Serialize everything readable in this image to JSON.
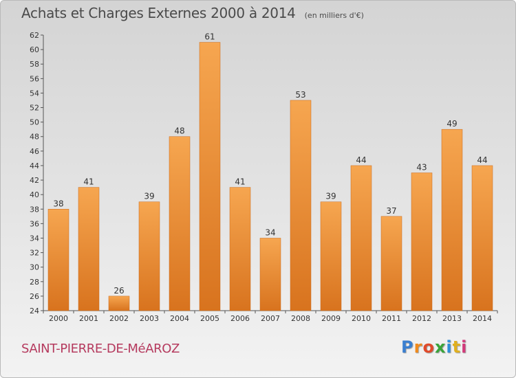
{
  "chart_data": {
    "type": "bar",
    "title": "Achats et Charges Externes 2000 à 2014",
    "unit": "(en milliers d'€)",
    "categories": [
      "2000",
      "2001",
      "2002",
      "2003",
      "2004",
      "2005",
      "2006",
      "2007",
      "2008",
      "2009",
      "2010",
      "2011",
      "2012",
      "2013",
      "2014"
    ],
    "values": [
      38,
      41,
      26,
      39,
      48,
      61,
      41,
      34,
      53,
      39,
      44,
      37,
      43,
      49,
      44
    ],
    "ylim": [
      24,
      62
    ],
    "yticks": [
      24,
      26,
      28,
      30,
      32,
      34,
      36,
      38,
      40,
      42,
      44,
      46,
      48,
      50,
      52,
      54,
      56,
      58,
      60,
      62
    ],
    "grid": false,
    "bar_color_light": "#f6a650",
    "bar_color_dark": "#d8731e"
  },
  "place_name": "SAINT-PIERRE-DE-MéAROZ",
  "logo": {
    "text": "Proxiti",
    "letter_colors": [
      "#3a7fd0",
      "#f08a1c",
      "#e04a2a",
      "#3aa43a",
      "#2f8fd8",
      "#e0b020",
      "#d23a7a"
    ]
  }
}
